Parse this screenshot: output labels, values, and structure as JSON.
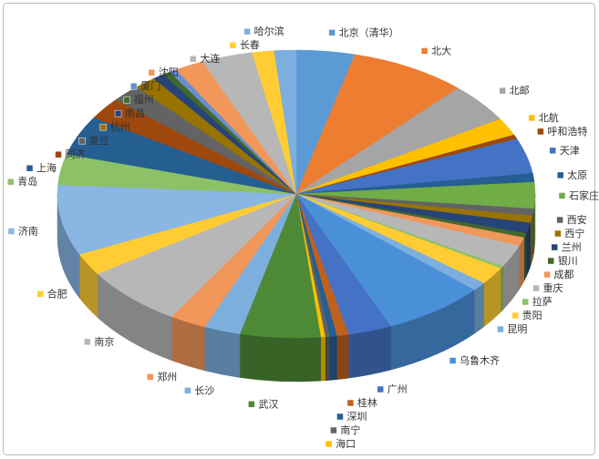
{
  "chart_data": {
    "type": "pie",
    "categories": [
      "北京（清华）",
      "北大",
      "北邮",
      "北航",
      "呼和浩特",
      "天津",
      "太原",
      "石家庄",
      "西安",
      "西宁",
      "兰州",
      "银川",
      "成都",
      "重庆",
      "拉萨",
      "贵阳",
      "昆明",
      "乌鲁木齐",
      "广州",
      "桂林",
      "深圳",
      "南宁",
      "海口",
      "武汉",
      "长沙",
      "郑州",
      "南京",
      "合肥",
      "济南",
      "青岛",
      "上海",
      "同济",
      "复旦",
      "杭州",
      "南昌",
      "福州",
      "厦门",
      "沈阳",
      "大连",
      "长春",
      "哈尔滨"
    ],
    "values": [
      4,
      8,
      4.5,
      2,
      0.5,
      4,
      1,
      3,
      0.8,
      0.8,
      1.2,
      0.5,
      1,
      2.5,
      0.3,
      2,
      1,
      7,
      3,
      0.8,
      0.5,
      0.3,
      0.3,
      5.5,
      2.5,
      2.5,
      7,
      2.5,
      8,
      3.5,
      4.5,
      2.5,
      2,
      1.5,
      0.8,
      0.5,
      0.5,
      2,
      3.5,
      1.5,
      1.5
    ],
    "colors": [
      "#5B9BD5",
      "#ED7D31",
      "#A5A5A5",
      "#FFC000",
      "#9E480E",
      "#4472C4",
      "#255E91",
      "#70AD47",
      "#636363",
      "#997300",
      "#264478",
      "#43682B",
      "#F1975A",
      "#B7B7B7",
      "#8CC168",
      "#FFCD33",
      "#7CAFDD",
      "#4A90D9",
      "#4472C4",
      "#C0601E",
      "#255E91",
      "#636363",
      "#FFC000",
      "#4E8A36",
      "#7CAFDD",
      "#F1975A",
      "#B7B7B7",
      "#FFCD33",
      "#8AB6E4",
      "#8CC168",
      "#255E91",
      "#9E480E",
      "#636363",
      "#997300",
      "#264478",
      "#43682B",
      "#698ED0",
      "#F1975A",
      "#B7B7B7",
      "#FFCD33",
      "#7CAFDD"
    ]
  }
}
